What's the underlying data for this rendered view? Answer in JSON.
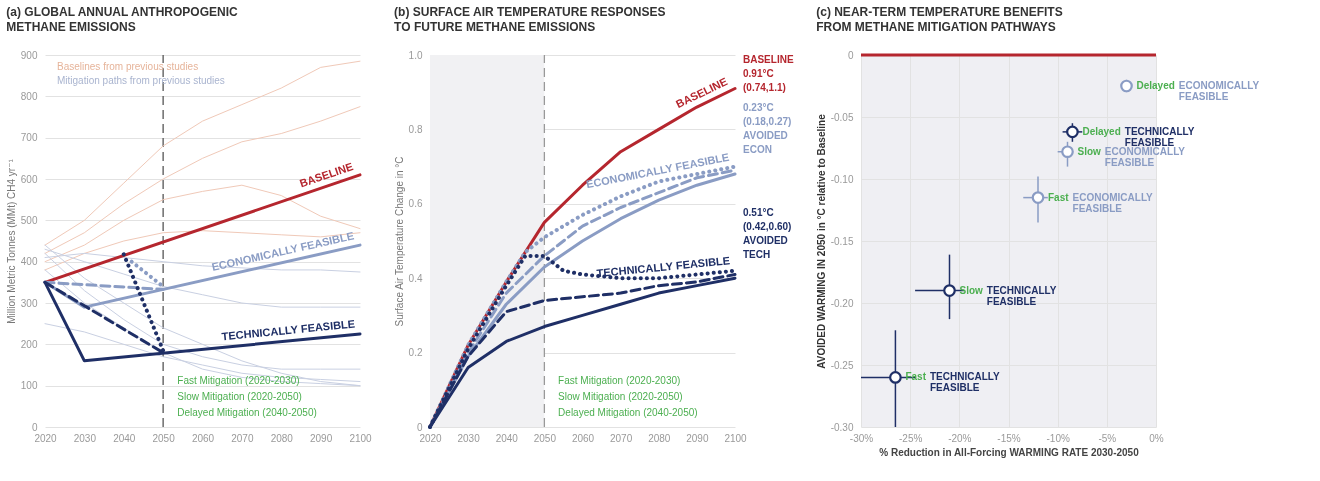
{
  "chart_data": [
    {
      "type": "line",
      "title": "(a) GLOBAL ANNUAL ANTHROPOGENIC METHANE EMISSIONS",
      "ylabel": "Million Metric Tonnes (MMt) CH4 yr⁻¹",
      "xlim": [
        2020,
        2100
      ],
      "xticks": [
        2020,
        2030,
        2040,
        2050,
        2060,
        2070,
        2080,
        2090,
        2100
      ],
      "ylim": [
        0,
        900
      ],
      "yticks": [
        0,
        100,
        200,
        300,
        400,
        500,
        600,
        700,
        800,
        900
      ],
      "grid": "y",
      "x": [
        2020,
        2030,
        2040,
        2050,
        2060,
        2070,
        2080,
        2090,
        2100
      ],
      "ref_lines": [
        {
          "axis": "x",
          "value": 2050,
          "color": "#555555",
          "line_style": "dashed"
        }
      ],
      "annotations": [
        "Baselines from previous studies",
        "Mitigation paths from previous studies",
        "Fast Mitigation (2020-2030)",
        "Slow Mitigation (2020-2050)",
        "Delayed Mitigation (2040-2050)"
      ],
      "series": [
        {
          "color": "#f0c9b8",
          "values": [
            440,
            500,
            590,
            680,
            740,
            780,
            820,
            870,
            885
          ]
        },
        {
          "color": "#f0c9b8",
          "values": [
            420,
            470,
            540,
            600,
            650,
            690,
            710,
            740,
            775
          ]
        },
        {
          "color": "#f0c9b8",
          "values": [
            400,
            440,
            500,
            550,
            570,
            585,
            560,
            510,
            480
          ]
        },
        {
          "color": "#f0c9b8",
          "values": [
            380,
            420,
            450,
            470,
            475,
            470,
            465,
            460,
            470
          ]
        },
        {
          "color": "#c9d0e2",
          "values": [
            430,
            400,
            370,
            340,
            320,
            300,
            290,
            290,
            290
          ]
        },
        {
          "color": "#c9d0e2",
          "values": [
            420,
            330,
            260,
            200,
            170,
            150,
            140,
            140,
            140
          ]
        },
        {
          "color": "#c9d0e2",
          "values": [
            440,
            360,
            300,
            240,
            200,
            160,
            130,
            110,
            100
          ]
        },
        {
          "color": "#c9d0e2",
          "values": [
            380,
            300,
            240,
            180,
            140,
            120,
            110,
            105,
            100
          ]
        },
        {
          "color": "#c9d0e2",
          "values": [
            410,
            420,
            410,
            400,
            390,
            385,
            380,
            380,
            375
          ]
        },
        {
          "color": "#c9d0e2",
          "values": [
            250,
            230,
            200,
            170,
            150,
            130,
            120,
            115,
            110
          ]
        },
        {
          "name": "BASELINE",
          "color": "#b5262e",
          "line_style": "solid",
          "x": [
            2020,
            2100
          ],
          "values": [
            350,
            610
          ]
        },
        {
          "name": "ECONOMICALLY FEASIBLE",
          "color": "#8a9cc4",
          "line_style": "solid",
          "x": [
            2020,
            2030,
            2100
          ],
          "values": [
            350,
            290,
            440
          ]
        },
        {
          "color": "#8a9cc4",
          "line_style": "dashed",
          "x": [
            2020,
            2050
          ],
          "values": [
            350,
            333
          ]
        },
        {
          "color": "#8a9cc4",
          "line_style": "dotted",
          "x": [
            2042,
            2050
          ],
          "values": [
            400,
            340
          ]
        },
        {
          "name": "TECHNICALLY FEASIBLE",
          "color": "#1f2f66",
          "line_style": "solid",
          "x": [
            2020,
            2030,
            2100
          ],
          "values": [
            350,
            160,
            225
          ]
        },
        {
          "color": "#1f2f66",
          "line_style": "dashed",
          "x": [
            2020,
            2050
          ],
          "values": [
            350,
            180
          ]
        },
        {
          "color": "#1f2f66",
          "line_style": "dotted",
          "x": [
            2040,
            2050
          ],
          "values": [
            418,
            185
          ]
        }
      ]
    },
    {
      "type": "line",
      "title": "(b) SURFACE AIR TEMPERATURE RESPONSES TO FUTURE METHANE EMISSIONS",
      "ylabel": "Surface Air Temperature Change in °C",
      "xlim": [
        2020,
        2100
      ],
      "xticks": [
        2020,
        2030,
        2040,
        2050,
        2060,
        2070,
        2080,
        2090,
        2100
      ],
      "ylim": [
        0,
        1
      ],
      "yticks": [
        0,
        0.2,
        0.4,
        0.6,
        0.8,
        {
          "value": 1,
          "label": "1.0"
        }
      ],
      "grid": "y",
      "x": [
        2020,
        2030,
        2040,
        2050,
        2060,
        2070,
        2080,
        2090,
        2100
      ],
      "bands": [
        {
          "axis": "x",
          "from": 2020,
          "to": 2050,
          "color": "#f1f1f3"
        }
      ],
      "ref_lines": [
        {
          "axis": "x",
          "value": 2050,
          "color": "#999999",
          "line_style": "dashed"
        }
      ],
      "annotations": [
        "Fast Mitigation (2020-2030)",
        "Slow Mitigation (2020-2050)",
        "Delayed Mitigation (2040-2050)",
        "BASELINE 0.91°C (0.74,1.1)",
        "0.23°C (0.18,0.27) AVOIDED ECON",
        "0.51°C (0.42,0.60) AVOIDED TECH"
      ],
      "series": [
        {
          "name": "BASELINE",
          "color": "#b5262e",
          "line_style": "solid",
          "values": [
            0,
            0.22,
            0.39,
            0.55,
            0.65,
            0.74,
            0.8,
            0.86,
            0.91
          ]
        },
        {
          "name": "ECONOMICALLY FEASIBLE",
          "color": "#8a9cc4",
          "line_style": "dotted",
          "x": [
            2020,
            2030,
            2040,
            2045,
            2050,
            2060,
            2070,
            2080,
            2090,
            2100
          ],
          "values": [
            0,
            0.22,
            0.39,
            0.47,
            0.51,
            0.57,
            0.62,
            0.66,
            0.68,
            0.7
          ]
        },
        {
          "color": "#8a9cc4",
          "line_style": "dashed",
          "values": [
            0,
            0.2,
            0.36,
            0.46,
            0.54,
            0.59,
            0.63,
            0.67,
            0.69
          ]
        },
        {
          "color": "#8a9cc4",
          "line_style": "solid",
          "values": [
            0,
            0.19,
            0.33,
            0.43,
            0.5,
            0.56,
            0.61,
            0.65,
            0.68
          ]
        },
        {
          "name": "TECHNICALLY FEASIBLE",
          "color": "#1f2f66",
          "line_style": "dotted",
          "x": [
            2020,
            2030,
            2040,
            2045,
            2050,
            2055,
            2060,
            2070,
            2080,
            2090,
            2100
          ],
          "values": [
            0,
            0.21,
            0.38,
            0.46,
            0.46,
            0.42,
            0.41,
            0.4,
            0.4,
            0.41,
            0.42
          ]
        },
        {
          "color": "#1f2f66",
          "line_style": "dashed",
          "values": [
            0,
            0.19,
            0.31,
            0.34,
            0.35,
            0.36,
            0.38,
            0.39,
            0.41
          ]
        },
        {
          "color": "#1f2f66",
          "line_style": "solid",
          "values": [
            0,
            0.16,
            0.23,
            0.27,
            0.3,
            0.33,
            0.36,
            0.38,
            0.4
          ]
        }
      ]
    },
    {
      "type": "scatter",
      "title": "(c) NEAR-TERM TEMPERATURE BENEFITS FROM METHANE MITIGATION PATHWAYS",
      "xlabel": "% Reduction in All-Forcing WARMING RATE 2030-2050",
      "ylabel": "AVOIDED WARMING IN 2050 in °C relative to Baseline",
      "xlim": [
        -30,
        0
      ],
      "xticks": [
        {
          "value": -30,
          "label": "-30%"
        },
        {
          "value": -25,
          "label": "-25%"
        },
        {
          "value": -20,
          "label": "-20%"
        },
        {
          "value": -15,
          "label": "-15%"
        },
        {
          "value": -10,
          "label": "-10%"
        },
        {
          "value": -5,
          "label": "-5%"
        },
        {
          "value": 0,
          "label": "0%"
        }
      ],
      "ylim": [
        -0.3,
        0
      ],
      "yticks": [
        {
          "value": -0.3,
          "label": "-0.30"
        },
        {
          "value": -0.25,
          "label": "-0.25"
        },
        {
          "value": -0.2,
          "label": "-0.20"
        },
        {
          "value": -0.15,
          "label": "-0.15"
        },
        {
          "value": -0.1,
          "label": "-0.10"
        },
        -0.05,
        0
      ],
      "grid": true,
      "marker": "circle",
      "ref_lines": [
        {
          "axis": "y",
          "value": 0,
          "color": "#b5262e"
        }
      ],
      "series": [
        {
          "name": "TECHNICALLY FEASIBLE",
          "color": "#1f2f66",
          "x": [
            -26.5,
            -21,
            -8.5
          ],
          "values": [
            -0.26,
            -0.19,
            -0.062
          ],
          "xerrors": [
            [
              -30,
              -24.5
            ],
            [
              -24.5,
              -19.5
            ],
            [
              -9.5,
              -7.5
            ]
          ],
          "errors": [
            [
              -0.3,
              -0.222
            ],
            [
              -0.213,
              -0.161
            ],
            [
              -0.07,
              -0.055
            ]
          ],
          "value_labels": [
            "Fast",
            "Slow",
            "Delayed"
          ]
        },
        {
          "name": "ECONOMICALLY FEASIBLE",
          "color": "#8a9cc4",
          "x": [
            -12,
            -9,
            -3
          ],
          "values": [
            -0.115,
            -0.078,
            -0.025
          ],
          "xerrors": [
            [
              -13.5,
              -11
            ],
            [
              -10,
              -8.5
            ],
            [
              -3.5,
              -2.5
            ]
          ],
          "errors": [
            [
              -0.135,
              -0.098
            ],
            [
              -0.09,
              -0.07
            ],
            [
              -0.03,
              -0.02
            ]
          ],
          "value_labels": [
            "Fast",
            "Slow",
            "Delayed"
          ]
        }
      ]
    }
  ]
}
